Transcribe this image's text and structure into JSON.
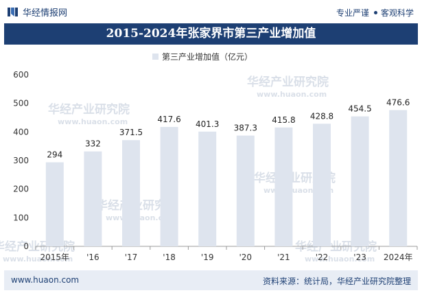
{
  "header": {
    "brand": "华经情报网",
    "tagline_left": "专业严谨",
    "tagline_right": "客观科学"
  },
  "watermark": {
    "cn": "华经产业研究院",
    "en": "www.huaon.com"
  },
  "chart_data": {
    "type": "bar",
    "title": "2015-2024年张家界市第三产业增加值",
    "legend": "第三产业增加值（亿元）",
    "categories": [
      "2015年",
      "'16",
      "'17",
      "'18",
      "'19",
      "'20",
      "'21",
      "'22",
      "'23",
      "2024年"
    ],
    "values": [
      294,
      332,
      371.5,
      417.6,
      401.3,
      387.3,
      415.8,
      428.8,
      454.5,
      476.6
    ],
    "value_labels": [
      "294",
      "332",
      "371.5",
      "417.6",
      "401.3",
      "387.3",
      "415.8",
      "428.8",
      "454.5",
      "476.6"
    ],
    "ylim": [
      0,
      600
    ],
    "yticks": [
      0,
      100,
      200,
      300,
      400,
      500,
      600
    ],
    "xlabel": "",
    "ylabel": "",
    "bar_color": "#dee4ee",
    "grid": false
  },
  "footer": {
    "website": "www.huaon.com",
    "source": "资料来源：统计局，华经产业研究院整理"
  },
  "colors": {
    "brand_navy": "#1d3f73",
    "footer_bg": "#e8edf5"
  }
}
